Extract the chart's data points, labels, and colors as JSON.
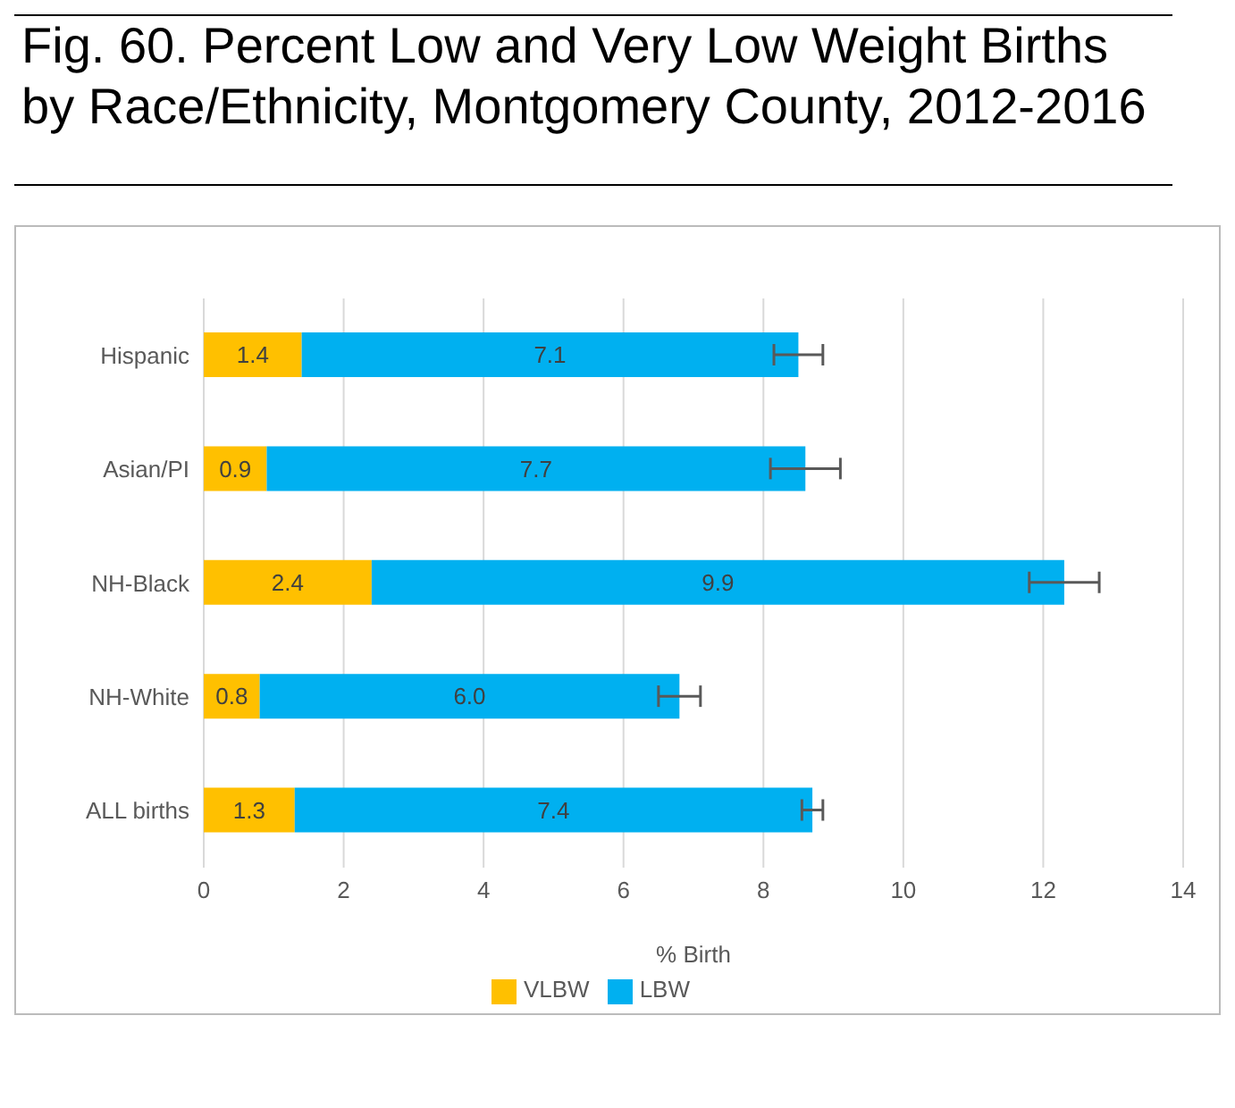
{
  "chart_data": {
    "type": "bar",
    "title": "Fig. 60. Percent Low and Very Low Weight Births by Race/Ethnicity, Montgomery County, 2012-2016",
    "orientation": "horizontal",
    "stacked": true,
    "categories": [
      "Hispanic",
      "Asian/PI",
      "NH-Black",
      "NH-White",
      "ALL births"
    ],
    "series": [
      {
        "name": "VLBW",
        "color": "#ffc000",
        "values": [
          1.4,
          0.9,
          2.4,
          0.8,
          1.3
        ],
        "value_labels": [
          "1.4",
          "0.9",
          "2.4",
          "0.8",
          "1.3"
        ]
      },
      {
        "name": "LBW",
        "color": "#00b0f0",
        "values": [
          7.1,
          7.7,
          9.9,
          6.0,
          7.4
        ],
        "value_labels": [
          "7.1",
          "7.7",
          "9.9",
          "6.0",
          "7.4"
        ],
        "errors": [
          0.35,
          0.5,
          0.5,
          0.3,
          0.15
        ]
      }
    ],
    "xlim": [
      0,
      14
    ],
    "xticks": [
      0,
      2,
      4,
      6,
      8,
      10,
      12,
      14
    ],
    "xlabel": "% Birth",
    "grid": "x",
    "legend": "bottom"
  }
}
